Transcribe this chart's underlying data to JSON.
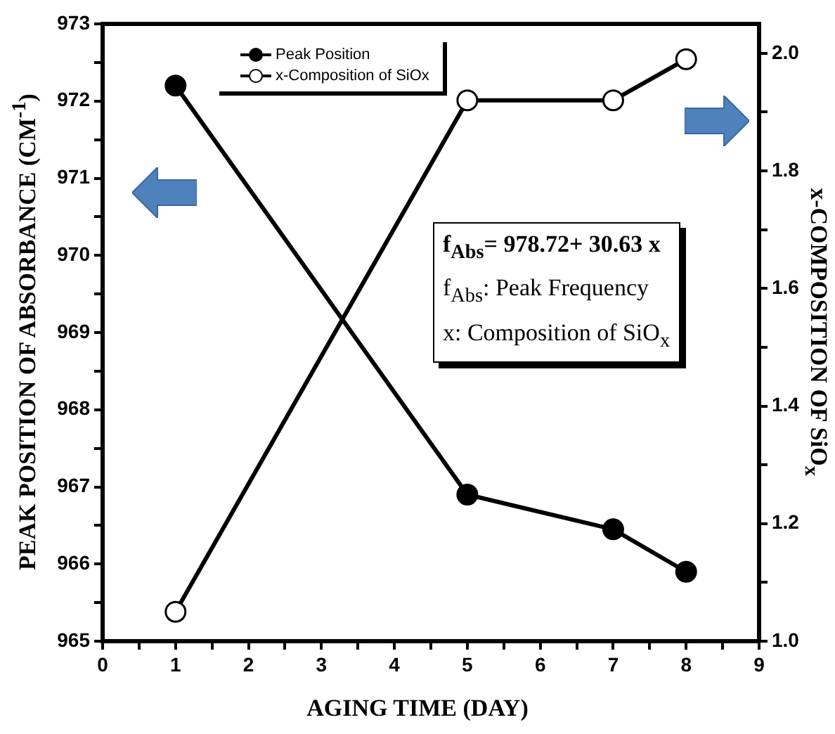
{
  "chart_data": {
    "type": "line",
    "xlabel": "AGING TIME (DAY)",
    "ylabel": "PEAK POSITION OF ABSORBANCE (CM$^{-1}$)",
    "y2label": "x-COMPOSITION OF SiO$_{x}$",
    "x": [
      1,
      5,
      7,
      8
    ],
    "series": [
      {
        "name": "Peak Position",
        "color": "#000000",
        "values": [
          972.2,
          966.9,
          966.45,
          965.9
        ]
      },
      {
        "name": "x-Composition of SiOx",
        "color": "#000000",
        "axis": "y2",
        "values": [
          1.05,
          1.92,
          1.92,
          1.99
        ]
      }
    ],
    "xlim": [
      0,
      9
    ],
    "xticks": [
      0,
      {
        "value": 0.5,
        "label": null
      },
      1,
      {
        "value": 1.5,
        "label": null
      },
      2,
      {
        "value": 2.5,
        "label": null
      },
      3,
      {
        "value": 3.5,
        "label": null
      },
      4,
      {
        "value": 4.5,
        "label": null
      },
      5,
      {
        "value": 5.5,
        "label": null
      },
      6,
      {
        "value": 6.5,
        "label": null
      },
      7,
      {
        "value": 7.5,
        "label": null
      },
      8,
      {
        "value": 8.5,
        "label": null
      },
      9
    ],
    "ylim": [
      965,
      973
    ],
    "yticks": [
      965,
      {
        "value": 965.5,
        "label": null
      },
      966,
      {
        "value": 966.5,
        "label": null
      },
      967,
      {
        "value": 967.5,
        "label": null
      },
      968,
      {
        "value": 968.5,
        "label": null
      },
      969,
      {
        "value": 969.5,
        "label": null
      },
      970,
      {
        "value": 970.5,
        "label": null
      },
      971,
      {
        "value": 971.5,
        "label": null
      },
      972,
      {
        "value": 972.5,
        "label": null
      },
      973
    ],
    "y2lim": [
      1.0,
      2.05
    ],
    "y2ticks": [
      {
        "value": 1.0,
        "label": "1.0"
      },
      {
        "value": 1.1,
        "label": null
      },
      {
        "value": 1.2,
        "label": "1.2"
      },
      {
        "value": 1.3,
        "label": null
      },
      {
        "value": 1.4,
        "label": "1.4"
      },
      {
        "value": 1.5,
        "label": null
      },
      {
        "value": 1.6,
        "label": "1.6"
      },
      {
        "value": 1.7,
        "label": null
      },
      {
        "value": 1.8,
        "label": "1.8"
      },
      {
        "value": 1.9,
        "label": null
      },
      {
        "value": 2.0,
        "label": "2.0"
      }
    ],
    "annotations": [
      "f$_{Abs}$= 978.72+ 30.63 x",
      "f$_{Abs}$: Peak Frequency",
      "x: Composition of SiO$_{x}$"
    ],
    "legend": "top",
    "grid": false,
    "marker": "circle",
    "line_style": "solid"
  }
}
